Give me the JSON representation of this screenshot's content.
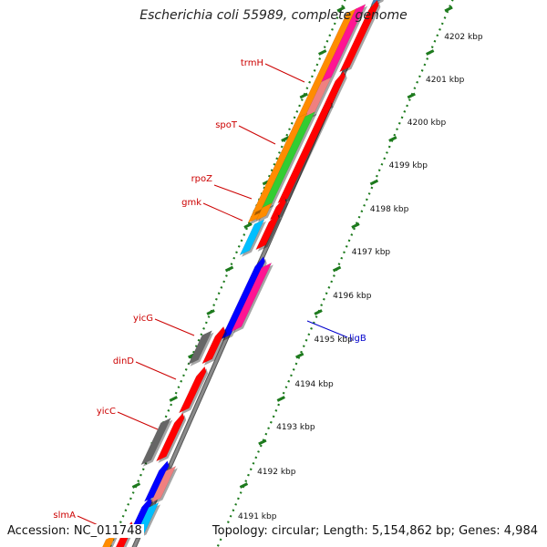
{
  "title": "Escherichia coli 55989, complete genome",
  "footer": {
    "accession": "Accession: NC_011748",
    "topology": "Topology: circular; Length: 5,154,862 bp; Genes: 4,984"
  },
  "colors": {
    "backbone": "#8a8a8a",
    "tick": "#1d7a1d",
    "kbp_label": "#111111",
    "gene_label_red": "#cc0000",
    "gene_label_blue": "#0000cc",
    "orange": "#ff8c00",
    "pink": "#ff1493",
    "light_red": "#f08080",
    "green": "#32cd32",
    "red": "#ff0000",
    "cyan": "#00bfff",
    "blue": "#0000ff",
    "gray": "#666666",
    "steel": "#4682b4"
  },
  "kbp_labels": [
    "4202 kbp",
    "4201 kbp",
    "4200 kbp",
    "4199 kbp",
    "4198 kbp",
    "4197 kbp",
    "4196 kbp",
    "4195 kbp",
    "4194 kbp",
    "4193 kbp",
    "4192 kbp",
    "4191 kbp"
  ],
  "gene_labels": [
    {
      "name": "trmH",
      "color": "red"
    },
    {
      "name": "spoT",
      "color": "red"
    },
    {
      "name": "rpoZ",
      "color": "red"
    },
    {
      "name": "gmk",
      "color": "red"
    },
    {
      "name": "yicG",
      "color": "red"
    },
    {
      "name": "dinD",
      "color": "red"
    },
    {
      "name": "yicC",
      "color": "red"
    },
    {
      "name": "slmA",
      "color": "red"
    },
    {
      "name": "ligB",
      "color": "blue"
    }
  ],
  "features": [
    {
      "color": "steel",
      "lane": "outer"
    },
    {
      "color": "orange",
      "lane": "innermost"
    },
    {
      "color": "pink",
      "lane": "inner"
    },
    {
      "color": "red",
      "lane": "outer"
    },
    {
      "color": "light_red",
      "lane": "inner"
    },
    {
      "color": "red",
      "lane": "outer"
    },
    {
      "color": "orange",
      "lane": "innermost"
    },
    {
      "color": "green",
      "lane": "inner"
    },
    {
      "color": "red",
      "lane": "outer"
    },
    {
      "color": "orange",
      "lane": "inner"
    },
    {
      "color": "red",
      "lane": "outer"
    },
    {
      "color": "cyan",
      "lane": "inner"
    },
    {
      "color": "red",
      "lane": "outer"
    },
    {
      "color": "blue",
      "lane": "near_outer"
    },
    {
      "color": "pink",
      "lane": "far_outer"
    },
    {
      "color": "gray",
      "lane": "inner"
    },
    {
      "color": "red",
      "lane": "outer"
    },
    {
      "color": "red",
      "lane": "outer"
    },
    {
      "color": "gray",
      "lane": "inner"
    },
    {
      "color": "red",
      "lane": "outer"
    },
    {
      "color": "blue",
      "lane": "near_outer"
    },
    {
      "color": "light_red",
      "lane": "far_outer"
    },
    {
      "color": "blue",
      "lane": "near_outer"
    },
    {
      "color": "cyan",
      "lane": "far_outer"
    },
    {
      "color": "orange",
      "lane": "inner"
    },
    {
      "color": "red",
      "lane": "outer"
    }
  ]
}
